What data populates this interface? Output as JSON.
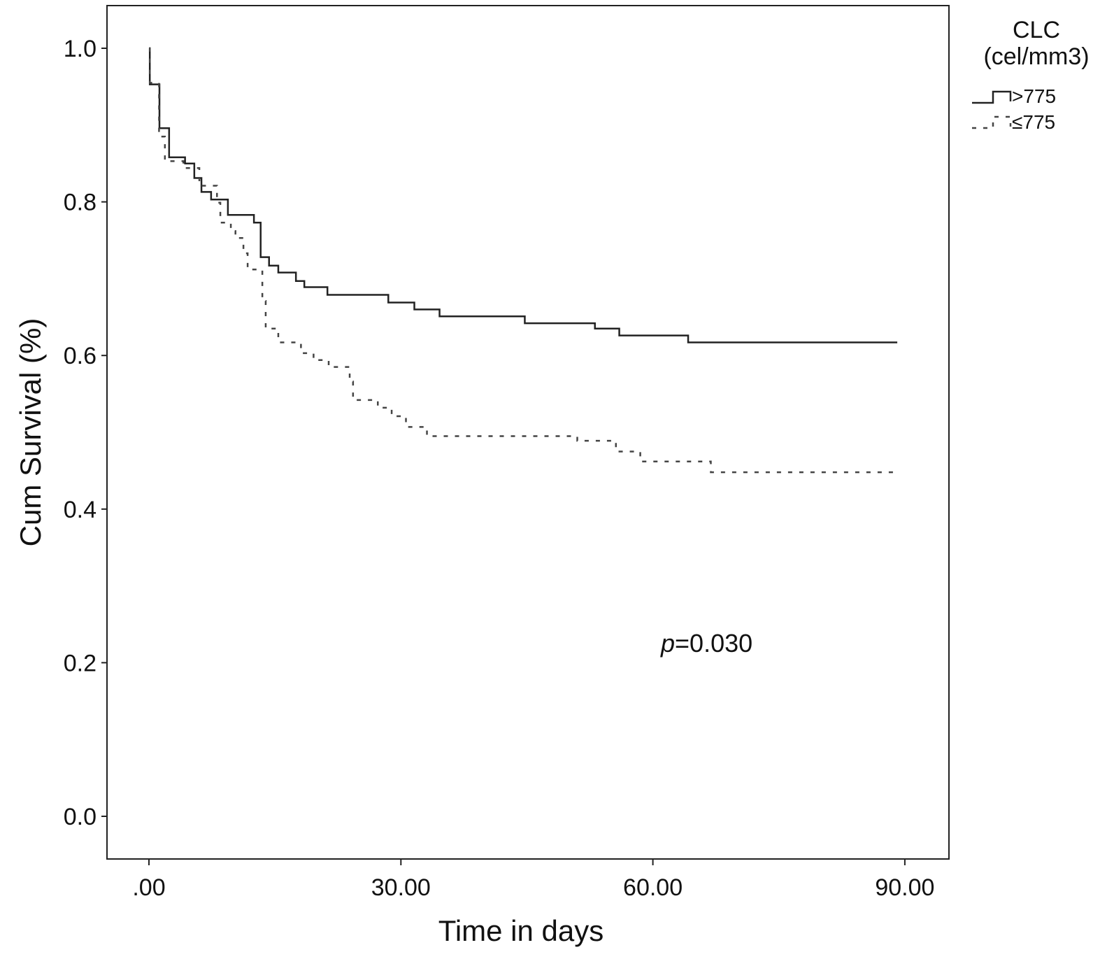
{
  "chart_data": {
    "type": "line",
    "subtype": "kaplan-meier",
    "title": "",
    "xlabel": "Time in days",
    "ylabel": "Cum Survival (%)",
    "xlim": [
      -5,
      95
    ],
    "ylim": [
      -0.05,
      1.05
    ],
    "xticks": [
      0,
      30,
      60,
      90
    ],
    "xtick_labels": [
      ".00",
      "30.00",
      "60.00",
      "90.00"
    ],
    "yticks": [
      0,
      0.2,
      0.4,
      0.6,
      0.8,
      1.0
    ],
    "ytick_labels": [
      "0.0",
      "0.2",
      "0.4",
      "0.6",
      "0.8",
      "1.0"
    ],
    "grid": false,
    "legend": {
      "title_line1": "CLC",
      "title_line2": "(cel/mm3)",
      "placement": "top-right outside"
    },
    "annotation": {
      "p_label": "p",
      "p_value": "=0.030"
    },
    "series": [
      {
        "name": ">775",
        "style": "solid",
        "color": "#222222",
        "x": [
          0,
          0.1,
          1.25,
          2.4,
          4.3,
          5.4,
          6.25,
          7.4,
          9.4,
          12.5,
          13.3,
          14.3,
          15.4,
          17.5,
          18.5,
          21.25,
          28.5,
          31.6,
          34.6,
          44.75,
          53.1,
          56.0,
          64.2,
          89.1
        ],
        "y": [
          1.0,
          0.953,
          0.896,
          0.858,
          0.85,
          0.831,
          0.813,
          0.803,
          0.783,
          0.773,
          0.728,
          0.717,
          0.708,
          0.697,
          0.689,
          0.679,
          0.669,
          0.66,
          0.651,
          0.642,
          0.635,
          0.626,
          0.617,
          0.617
        ]
      },
      {
        "name": "≤775",
        "style": "dashed",
        "color": "#444444",
        "x": [
          0,
          0.1,
          1.2,
          1.9,
          4.1,
          6.0,
          8.1,
          8.5,
          9.75,
          10.3,
          11.25,
          11.75,
          13.5,
          13.9,
          15.4,
          18.1,
          19.6,
          21.4,
          23.9,
          24.3,
          27.25,
          28.9,
          30.6,
          33.1,
          51.0,
          55.6,
          58.5,
          66.9,
          89.1
        ],
        "y": [
          1.0,
          0.955,
          0.885,
          0.853,
          0.844,
          0.821,
          0.799,
          0.773,
          0.762,
          0.753,
          0.733,
          0.712,
          0.671,
          0.635,
          0.617,
          0.603,
          0.594,
          0.585,
          0.566,
          0.542,
          0.532,
          0.521,
          0.507,
          0.495,
          0.489,
          0.475,
          0.462,
          0.448,
          0.448
        ]
      }
    ]
  }
}
